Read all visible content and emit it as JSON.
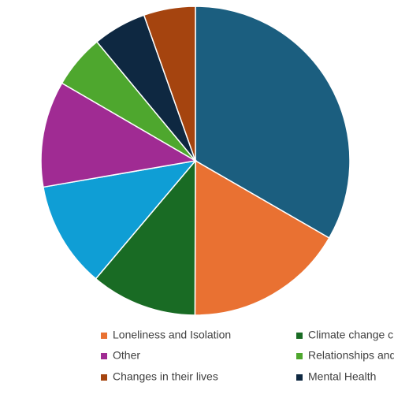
{
  "chart_data": {
    "type": "pie",
    "categories": [
      null,
      "Loneliness and Isolation",
      "Climate change c",
      null,
      "Other",
      "Relationships and",
      "Mental Health",
      "Changes in their lives"
    ],
    "values": [
      33.3,
      16.7,
      11.1,
      11.1,
      11.1,
      5.6,
      5.6,
      5.4
    ],
    "colors": [
      "#1b5e7f",
      "#e97132",
      "#196b24",
      "#0f9ed5",
      "#a02b93",
      "#4ea72e",
      "#0e2841",
      "#a5440f"
    ]
  }
}
